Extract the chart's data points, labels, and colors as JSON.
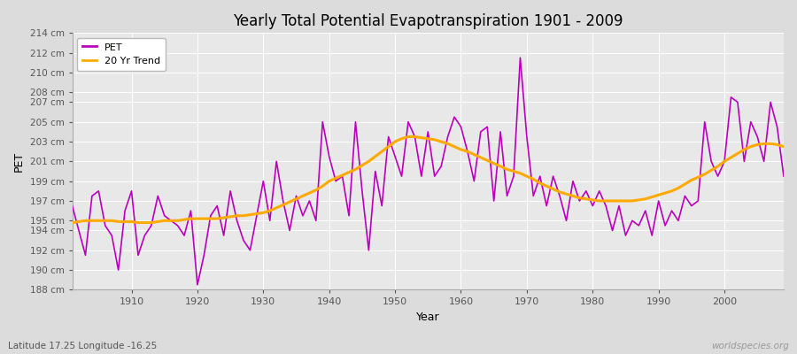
{
  "title": "Yearly Total Potential Evapotranspiration 1901 - 2009",
  "xlabel": "Year",
  "ylabel": "PET",
  "subtitle": "Latitude 17.25 Longitude -16.25",
  "watermark": "worldspecies.org",
  "pet_color": "#bb00bb",
  "trend_color": "#ffaa00",
  "bg_color": "#dcdcdc",
  "plot_bg_color": "#e8e8e8",
  "years": [
    1901,
    1902,
    1903,
    1904,
    1905,
    1906,
    1907,
    1908,
    1909,
    1910,
    1911,
    1912,
    1913,
    1914,
    1915,
    1916,
    1917,
    1918,
    1919,
    1920,
    1921,
    1922,
    1923,
    1924,
    1925,
    1926,
    1927,
    1928,
    1929,
    1930,
    1931,
    1932,
    1933,
    1934,
    1935,
    1936,
    1937,
    1938,
    1939,
    1940,
    1941,
    1942,
    1943,
    1944,
    1945,
    1946,
    1947,
    1948,
    1949,
    1950,
    1951,
    1952,
    1953,
    1954,
    1955,
    1956,
    1957,
    1958,
    1959,
    1960,
    1961,
    1962,
    1963,
    1964,
    1965,
    1966,
    1967,
    1968,
    1969,
    1970,
    1971,
    1972,
    1973,
    1974,
    1975,
    1976,
    1977,
    1978,
    1979,
    1980,
    1981,
    1982,
    1983,
    1984,
    1985,
    1986,
    1987,
    1988,
    1989,
    1990,
    1991,
    1992,
    1993,
    1994,
    1995,
    1996,
    1997,
    1998,
    1999,
    2000,
    2001,
    2002,
    2003,
    2004,
    2005,
    2006,
    2007,
    2008,
    2009
  ],
  "pet_values": [
    196.5,
    194.0,
    191.5,
    197.5,
    198.0,
    194.5,
    193.5,
    190.0,
    196.0,
    198.0,
    191.5,
    193.5,
    194.5,
    197.5,
    195.5,
    195.0,
    194.5,
    193.5,
    196.0,
    188.5,
    191.5,
    195.5,
    196.5,
    193.5,
    198.0,
    195.0,
    193.0,
    192.0,
    195.5,
    199.0,
    195.0,
    201.0,
    197.0,
    194.0,
    197.5,
    195.5,
    197.0,
    195.0,
    205.0,
    201.5,
    199.0,
    199.5,
    195.5,
    205.0,
    198.0,
    192.0,
    200.0,
    196.5,
    203.5,
    201.5,
    199.5,
    205.0,
    203.5,
    199.5,
    204.0,
    199.5,
    200.5,
    203.5,
    205.5,
    204.5,
    202.0,
    199.0,
    204.0,
    204.5,
    197.0,
    204.0,
    197.5,
    199.5,
    211.5,
    203.5,
    197.5,
    199.5,
    196.5,
    199.5,
    197.5,
    195.0,
    199.0,
    197.0,
    198.0,
    196.5,
    198.0,
    196.5,
    194.0,
    196.5,
    193.5,
    195.0,
    194.5,
    196.0,
    193.5,
    197.0,
    194.5,
    196.0,
    195.0,
    197.5,
    196.5,
    197.0,
    205.0,
    201.0,
    199.5,
    201.0,
    207.5,
    207.0,
    201.0,
    205.0,
    203.5,
    201.0,
    207.0,
    204.5,
    199.5
  ],
  "trend_values": [
    194.8,
    194.9,
    195.0,
    195.0,
    195.0,
    195.0,
    195.0,
    194.9,
    194.9,
    194.9,
    194.8,
    194.8,
    194.8,
    194.9,
    195.0,
    195.0,
    195.0,
    195.1,
    195.2,
    195.2,
    195.2,
    195.2,
    195.2,
    195.3,
    195.4,
    195.5,
    195.5,
    195.6,
    195.7,
    195.8,
    196.0,
    196.3,
    196.6,
    196.9,
    197.2,
    197.5,
    197.8,
    198.1,
    198.5,
    199.0,
    199.3,
    199.6,
    199.9,
    200.2,
    200.6,
    201.0,
    201.5,
    202.0,
    202.5,
    203.0,
    203.3,
    203.5,
    203.5,
    203.4,
    203.3,
    203.2,
    203.0,
    202.8,
    202.5,
    202.2,
    202.0,
    201.7,
    201.4,
    201.1,
    200.8,
    200.5,
    200.2,
    200.0,
    199.8,
    199.5,
    199.2,
    198.8,
    198.5,
    198.2,
    197.9,
    197.7,
    197.5,
    197.3,
    197.2,
    197.1,
    197.0,
    197.0,
    197.0,
    197.0,
    197.0,
    197.0,
    197.1,
    197.2,
    197.4,
    197.6,
    197.8,
    198.0,
    198.3,
    198.7,
    199.1,
    199.4,
    199.7,
    200.1,
    200.5,
    201.0,
    201.4,
    201.8,
    202.2,
    202.5,
    202.7,
    202.8,
    202.8,
    202.7,
    202.5
  ],
  "ylim": [
    188,
    214
  ],
  "yticks": [
    188,
    190,
    192,
    194,
    195,
    197,
    199,
    201,
    203,
    205,
    207,
    208,
    210,
    212,
    214
  ],
  "xticks": [
    1910,
    1920,
    1930,
    1940,
    1950,
    1960,
    1970,
    1980,
    1990,
    2000
  ],
  "linewidth_pet": 1.2,
  "linewidth_trend": 2.2
}
